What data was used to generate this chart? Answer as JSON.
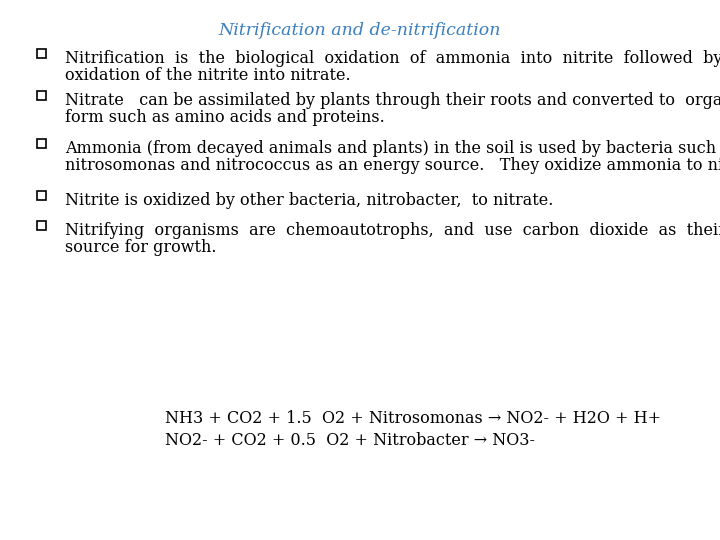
{
  "title": "Nitrification and de-nitrification",
  "title_color": "#3B7EC0",
  "title_fontsize": 12.5,
  "background_color": "#ffffff",
  "bullet_color": "#000000",
  "bullet_fontsize": 11.5,
  "text_fontsize": 11.5,
  "text_color": "#000000",
  "bullet_lines": [
    [
      "Nitrification  is  the  biological  oxidation  of  ammonia  into  nitrite  followed  by  the",
      "oxidation of the nitrite into nitrate."
    ],
    [
      "Nitrate   can be assimilated by plants through their roots and converted to  organic",
      "form such as amino acids and proteins."
    ],
    [
      "Ammonia (from decayed animals and plants) in the soil is used by bacteria such as",
      "nitrosomonas and nitrococcus as an energy source.   They oxidize ammonia to nitrite."
    ],
    [
      "Nitrite is oxidized by other bacteria, nitrobacter,  to nitrate."
    ],
    [
      "Nitrifying  organisms  are  chemoautotrophs,  and  use  carbon  dioxide  as  their  carbon",
      "source for growth."
    ]
  ],
  "eq1": "NH3 + CO2 + 1.5  O2 + Nitrosomonas → NO2- + H2O + H+",
  "eq2": "NO2- + CO2 + 0.5  O2 + Nitrobacter → NO3-",
  "eq_fontsize": 11.5,
  "eq_color": "#000000"
}
